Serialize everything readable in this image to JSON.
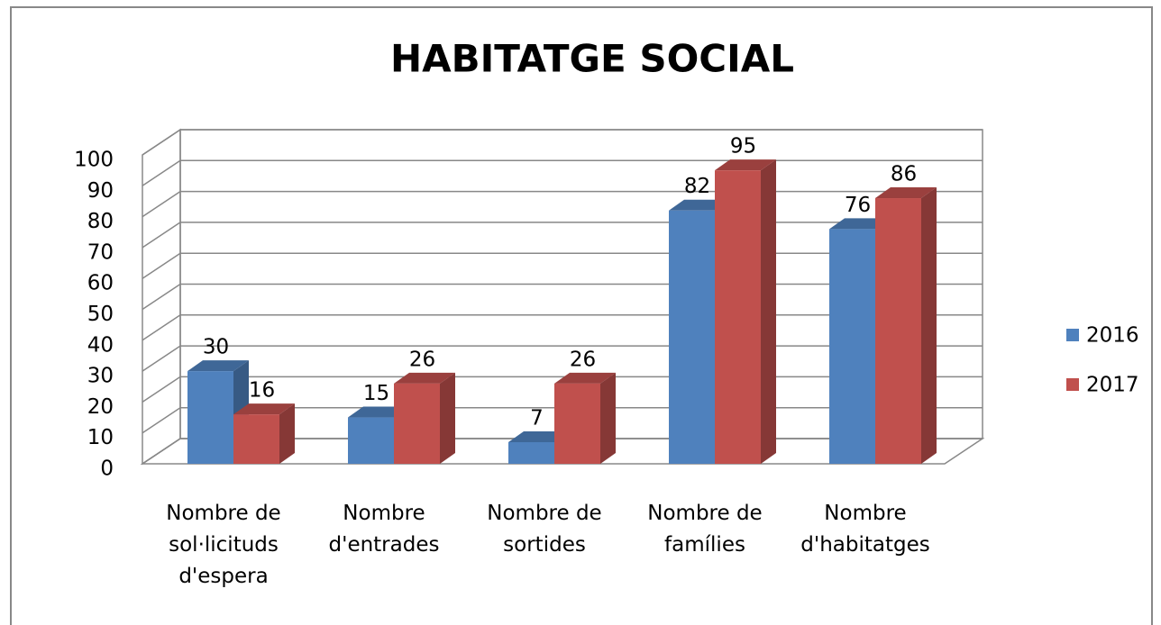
{
  "chart_data": {
    "type": "bar3d",
    "title": "HABITATGE SOCIAL",
    "categories": [
      "Nombre de sol·licituds d'espera",
      "Nombre d'entrades",
      "Nombre de sortides",
      "Nombre de famílies",
      "Nombre d'habitatges"
    ],
    "series": [
      {
        "name": "2016",
        "color": "#4f81bd",
        "values": [
          30,
          15,
          7,
          82,
          76
        ]
      },
      {
        "name": "2017",
        "color": "#c0504d",
        "values": [
          16,
          26,
          26,
          95,
          86
        ]
      }
    ],
    "ylim": [
      0,
      100
    ],
    "yticks": [
      0,
      10,
      20,
      30,
      40,
      50,
      60,
      70,
      80,
      90,
      100
    ],
    "grid": true,
    "legend": "right"
  }
}
